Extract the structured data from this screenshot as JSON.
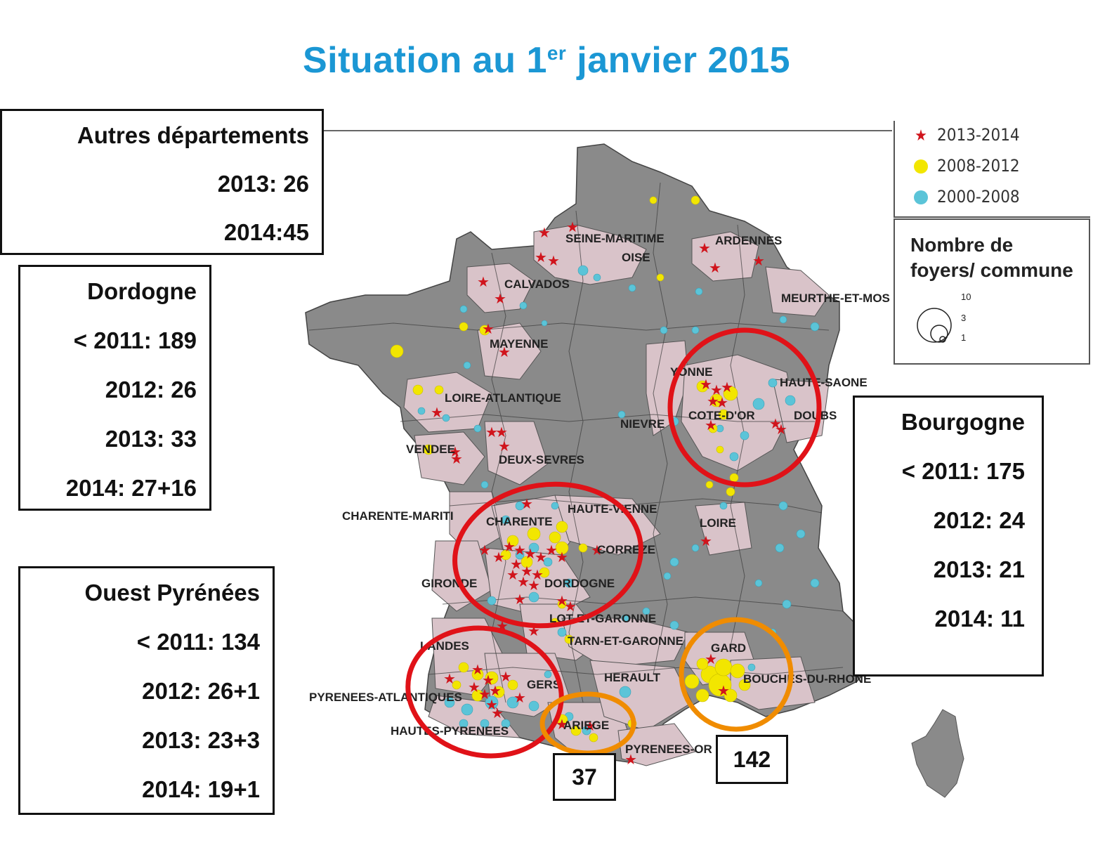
{
  "title": {
    "main_prefix": "Situation au 1",
    "superscript": "er",
    "main_suffix": " janvier 2015"
  },
  "boxes": {
    "autres": {
      "heading": "Autres départements",
      "lines": [
        "2013: 26",
        "2014:45"
      ]
    },
    "dordogne": {
      "heading": "Dordogne",
      "lines": [
        "< 2011: 189",
        "2012: 26",
        "2013: 33",
        "2014: 27+16"
      ]
    },
    "ouest": {
      "heading": "Ouest Pyrénées",
      "lines": [
        "< 2011: 134",
        "2012: 26+1",
        "2013: 23+3",
        "2014: 19+1"
      ]
    },
    "bourgogne": {
      "heading": "Bourgogne",
      "lines": [
        "< 2011: 175",
        "2012: 24",
        "2013: 21",
        "2014: 11"
      ]
    }
  },
  "counts": {
    "ariege": "37",
    "gard": "142"
  },
  "legend": {
    "periods": [
      {
        "label": "2013-2014",
        "symbol": "star",
        "color": "#d0141c"
      },
      {
        "label": "2008-2012",
        "symbol": "circle",
        "color": "#f2e600"
      },
      {
        "label": "2000-2008",
        "symbol": "circle",
        "color": "#5bc4d8"
      }
    ],
    "size_title_1": "Nombre de",
    "size_title_2": "foyers/ commune",
    "size_values": [
      "10",
      "3",
      "1"
    ]
  },
  "departments": [
    "SEINE-MARITIME",
    "OISE",
    "ARDENNES",
    "CALVADOS",
    "MEURTHE-ET-MOS",
    "MAYENNE",
    "YONNE",
    "HAUTE-SAONE",
    "LOIRE-ATLANTIQUE",
    "NIEVRE",
    "COTE-D'OR",
    "DOUBS",
    "VENDEE",
    "DEUX-SEVRES",
    "CHARENTE-MARITI",
    "HAUTE-VIENNE",
    "CHARENTE",
    "LOIRE",
    "CORREZE",
    "GIRONDE",
    "DORDOGNE",
    "LOT-ET-GARONNE",
    "TARN-ET-GARONNE",
    "LANDES",
    "GARD",
    "HERAULT",
    "GERS",
    "BOUCHES-DU-RHONE",
    "PYRENEES-ATLANTIQUES",
    "ARIEGE",
    "HAUTES-PYRENEES",
    "PYRENEES-OR"
  ],
  "colors": {
    "title": "#1b97d4",
    "map_gray": "#8a8a8a",
    "map_pink": "#d9c3c9",
    "circle_red": "#e01218",
    "circle_orange": "#f08c00"
  }
}
